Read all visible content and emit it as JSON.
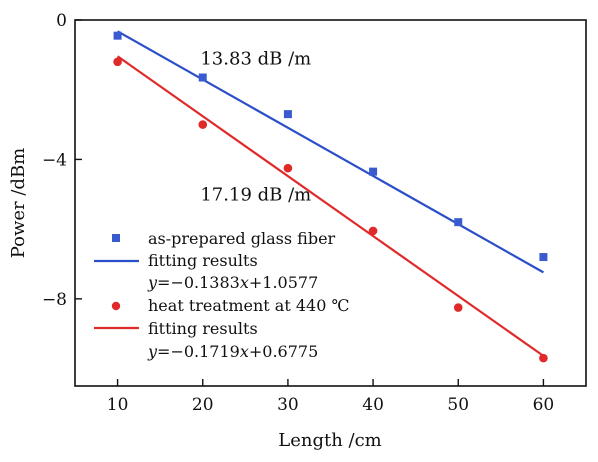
{
  "chart_data": {
    "type": "scatter",
    "xlabel": "Length /cm",
    "ylabel": "Power /dBm",
    "xlim": [
      5,
      65
    ],
    "ylim": [
      -10.5,
      0
    ],
    "x_ticks": [
      "10",
      "20",
      "30",
      "40",
      "50",
      "60"
    ],
    "y_ticks": [
      "0",
      "−4",
      "−8"
    ],
    "y_tick_values": [
      0,
      -4,
      -8
    ],
    "grid": false,
    "legend_position": "bottom-left",
    "annotations": [
      {
        "text": "13.83 dB /m",
        "x": 27,
        "y": -1.1
      },
      {
        "text": "17.19 dB /m",
        "x": 27,
        "y": -5.0
      }
    ],
    "series": [
      {
        "name": "as-prepared glass fiber",
        "marker": "square",
        "color": "#3a5bd0",
        "x": [
          10,
          20,
          30,
          40,
          50,
          60
        ],
        "y": [
          -0.45,
          -1.65,
          -2.7,
          -4.35,
          -5.8,
          -6.8
        ]
      },
      {
        "name": "fitting results",
        "formula_prefix": "y",
        "formula_rest": "=−0.1383",
        "formula_x": "x",
        "formula_end": "+1.0577",
        "line": true,
        "color": "#2a4fc8",
        "slope": -0.1383,
        "intercept": 1.0577
      },
      {
        "name": "heat treatment at 440 ℃",
        "marker": "circle",
        "color": "#e02a2a",
        "x": [
          10,
          20,
          30,
          40,
          50,
          60
        ],
        "y": [
          -1.2,
          -3.0,
          -4.25,
          -6.05,
          -8.25,
          -9.7
        ]
      },
      {
        "name": "fitting results",
        "formula_prefix": "y",
        "formula_rest": "=−0.1719",
        "formula_x": "x",
        "formula_end": "+0.6775",
        "line": true,
        "color": "#e02a2a",
        "slope": -0.1719,
        "intercept": 0.6775
      }
    ]
  }
}
